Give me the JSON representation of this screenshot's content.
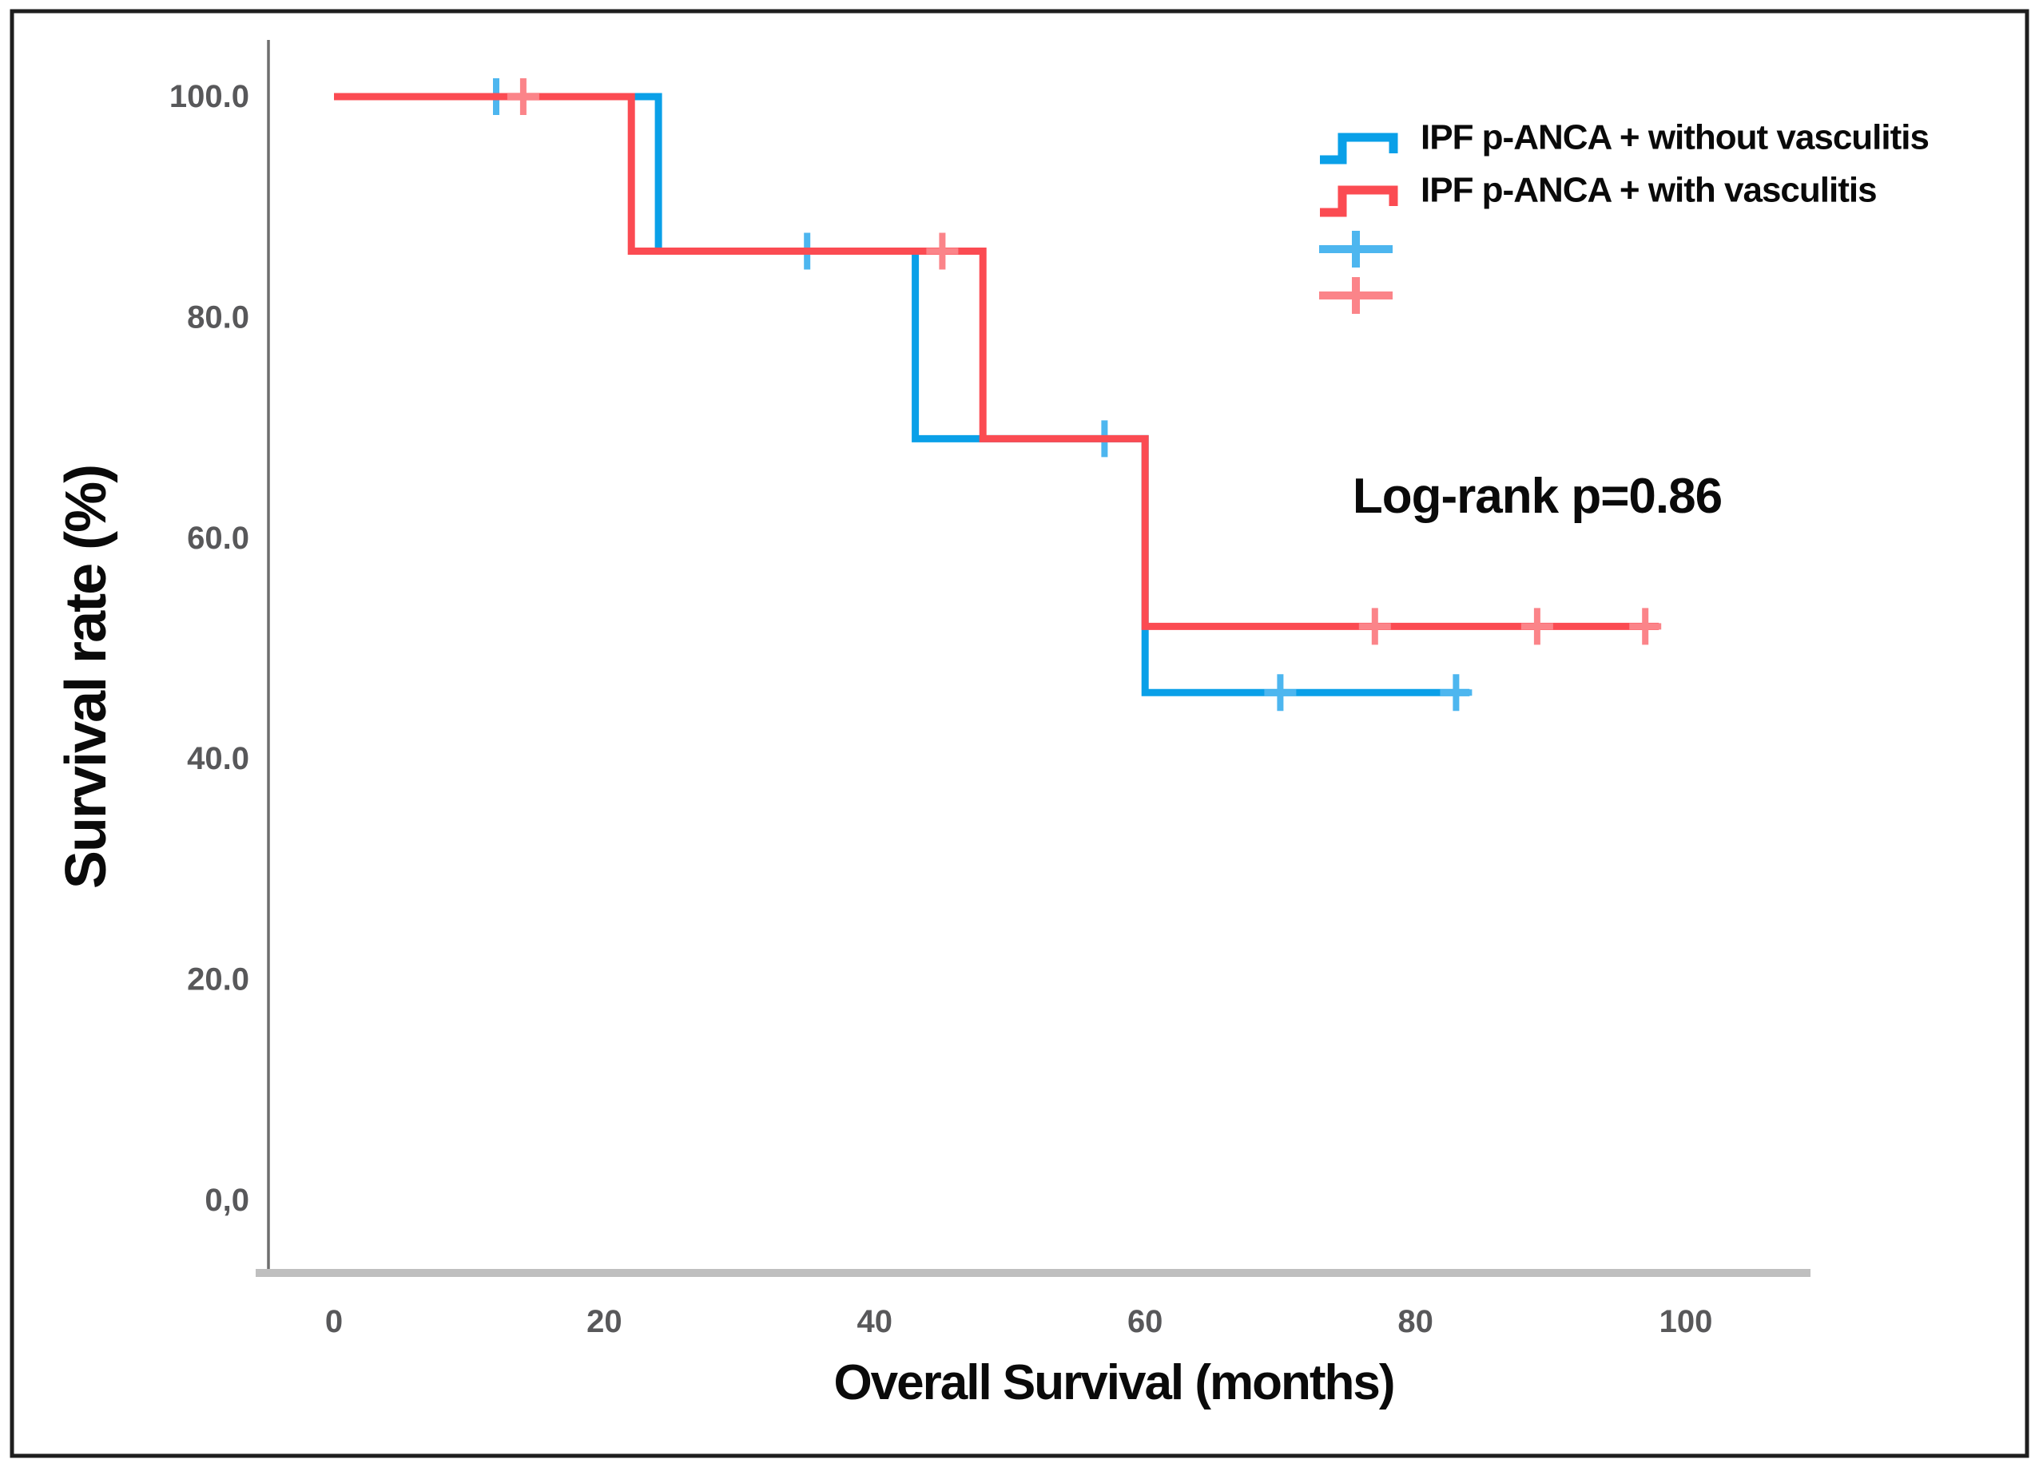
{
  "chart_data": {
    "type": "line",
    "subtype": "kaplan-meier-step",
    "title": "",
    "xlabel": "Overall Survival (months)",
    "ylabel": "Survival rate (%)",
    "xlim": [
      0,
      109
    ],
    "ylim": [
      0,
      100
    ],
    "grid": false,
    "legend_position": "top-right",
    "x_ticks": [
      0,
      20,
      40,
      60,
      80,
      100
    ],
    "x_tick_labels": [
      "0",
      "20",
      "40",
      "60",
      "80",
      "100"
    ],
    "y_ticks": [
      100,
      80,
      60,
      40,
      20,
      0
    ],
    "y_tick_labels": [
      "100.0",
      "80.0",
      "60.0",
      "40.0",
      "20.0",
      "0,0"
    ],
    "annotation": {
      "text": "Log-rank p=0.86",
      "x_months": 89,
      "y_pct": 64
    },
    "series": [
      {
        "name": "IPF p-ANCA + without vasculitis",
        "color": "#0aa0e8",
        "censor_color": "#4db6ef",
        "steps": [
          [
            0,
            100
          ],
          [
            24,
            100
          ],
          [
            24,
            86
          ],
          [
            43,
            86
          ],
          [
            43,
            69
          ],
          [
            60,
            69
          ],
          [
            60,
            46
          ],
          [
            84,
            46
          ]
        ],
        "censors": [
          [
            12,
            100
          ],
          [
            35,
            86
          ],
          [
            57,
            69
          ],
          [
            70,
            46
          ],
          [
            83,
            46
          ]
        ]
      },
      {
        "name": "IPF p-ANCA + with vasculitis",
        "color": "#fb4b52",
        "censor_color": "#fb8489",
        "steps": [
          [
            0,
            100
          ],
          [
            22,
            100
          ],
          [
            22,
            86
          ],
          [
            48,
            86
          ],
          [
            48,
            69
          ],
          [
            60,
            69
          ],
          [
            60,
            52
          ],
          [
            98,
            52
          ]
        ],
        "censors": [
          [
            14,
            100
          ],
          [
            45,
            86
          ],
          [
            77,
            52
          ],
          [
            89,
            52
          ],
          [
            97,
            52
          ]
        ]
      }
    ],
    "colors": {
      "tick_label": "#58585a",
      "y_axis_line": "#6f6f6f",
      "x_axis_line": "#bfbfbf",
      "frame": "#1e1e1e",
      "background": "#ffffff"
    }
  }
}
